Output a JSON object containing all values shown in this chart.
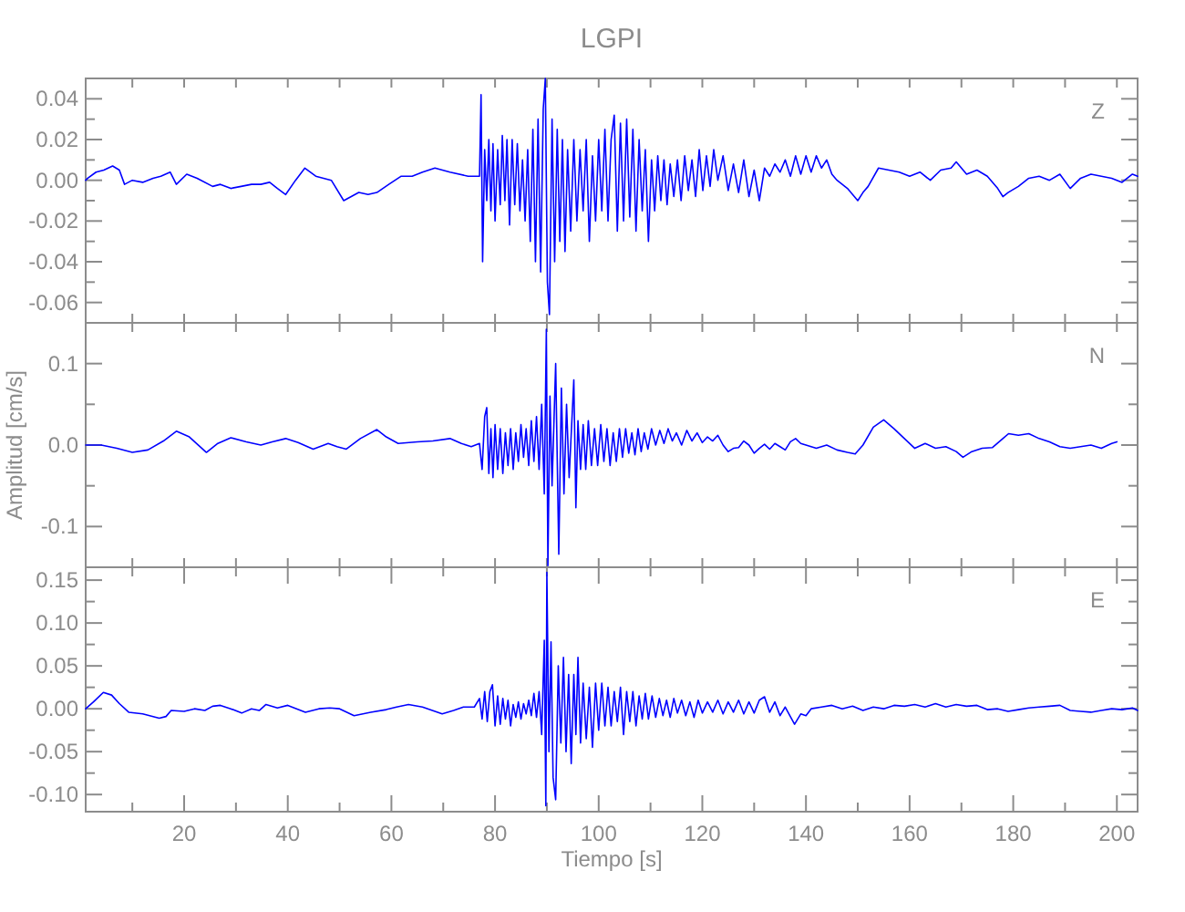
{
  "chart_data": [
    {
      "type": "line",
      "title": "LGPI",
      "annotations": [
        "Z"
      ],
      "tick_labels": "y",
      "xlim": [
        1,
        204
      ],
      "xticks": [
        {
          "value": 10,
          "label": null
        },
        {
          "value": 20,
          "label": null
        },
        {
          "value": 30,
          "label": null
        },
        {
          "value": 40,
          "label": null
        },
        {
          "value": 50,
          "label": null
        },
        {
          "value": 60,
          "label": null
        },
        {
          "value": 70,
          "label": null
        },
        {
          "value": 80,
          "label": null
        },
        {
          "value": 90,
          "label": null
        },
        {
          "value": 100,
          "label": null
        },
        {
          "value": 110,
          "label": null
        },
        {
          "value": 120,
          "label": null
        },
        {
          "value": 130,
          "label": null
        },
        {
          "value": 140,
          "label": null
        },
        {
          "value": 150,
          "label": null
        },
        {
          "value": 160,
          "label": null
        },
        {
          "value": 170,
          "label": null
        },
        {
          "value": 180,
          "label": null
        },
        {
          "value": 190,
          "label": null
        },
        {
          "value": 200,
          "label": null
        }
      ],
      "ylim": [
        -0.07,
        0.05
      ],
      "yticks": [
        {
          "value": -0.07,
          "label": null
        },
        {
          "value": -0.06,
          "label": "-0.06"
        },
        {
          "value": -0.05,
          "label": null
        },
        {
          "value": -0.04,
          "label": "-0.04"
        },
        {
          "value": -0.03,
          "label": null
        },
        {
          "value": -0.02,
          "label": "-0.02"
        },
        {
          "value": -0.01,
          "label": null
        },
        {
          "value": 0,
          "label": "0.00"
        },
        {
          "value": 0.01,
          "label": null
        },
        {
          "value": 0.02,
          "label": "0.02"
        },
        {
          "value": 0.03,
          "label": null
        },
        {
          "value": 0.04,
          "label": "0.04"
        },
        {
          "value": 0.05,
          "label": null
        }
      ],
      "x": [
        1,
        1.4,
        3,
        4.5,
        6.2,
        7.5,
        8.5,
        10,
        12,
        14,
        15.5,
        17.3,
        18.5,
        20.5,
        22.5,
        25.5,
        27,
        29,
        31,
        33,
        34.8,
        36.5,
        38,
        39.6,
        41.5,
        43.3,
        45.4,
        48.4,
        50.8,
        53.7,
        55.5,
        57.2,
        59.5,
        61.9,
        64,
        66,
        68.4,
        71.3,
        74.8,
        77,
        77.3,
        77.6,
        78,
        78.4,
        78.8,
        79.2,
        79.6,
        80,
        80.5,
        81,
        81.4,
        81.9,
        82.3,
        82.8,
        83.3,
        83.8,
        84.3,
        84.8,
        85.3,
        85.8,
        86.3,
        86.8,
        87.3,
        87.8,
        88.3,
        88.8,
        89.3,
        89.7,
        90.1,
        90.5,
        91,
        91.5,
        92,
        92.5,
        93,
        93.5,
        94,
        94.6,
        95.2,
        95.8,
        96.4,
        97,
        97.6,
        98.2,
        98.8,
        99.4,
        100,
        100.6,
        101.2,
        101.8,
        102.4,
        103,
        103.6,
        104.2,
        104.8,
        105.4,
        106,
        106.6,
        107.2,
        107.8,
        108.4,
        109,
        109.6,
        110.2,
        110.8,
        111.4,
        112,
        112.6,
        113.2,
        113.8,
        114.5,
        115.2,
        115.9,
        116.6,
        117.3,
        118,
        118.7,
        119.4,
        120.1,
        120.8,
        121.5,
        122.2,
        123,
        124,
        125,
        126,
        127,
        128,
        129,
        130,
        131,
        132,
        133,
        134,
        135,
        136,
        137,
        138,
        139,
        140,
        141,
        142,
        143,
        144,
        145,
        146,
        148,
        149,
        150,
        151,
        152,
        154,
        156,
        158,
        160,
        162,
        164,
        166,
        168,
        169,
        171,
        173,
        175,
        177,
        178,
        179,
        181,
        183,
        185,
        187,
        189,
        191,
        193,
        195,
        197,
        199,
        201,
        203,
        204
      ],
      "series": [
        {
          "color": "#0000ff",
          "values": [
            0.0,
            0.001,
            0.004,
            0.005,
            0.007,
            0.005,
            -0.002,
            0.0,
            -0.001,
            0.001,
            0.002,
            0.004,
            -0.002,
            0.003,
            0.001,
            -0.003,
            -0.002,
            -0.004,
            -0.003,
            -0.002,
            -0.002,
            -0.001,
            -0.004,
            -0.007,
            0.0,
            0.006,
            0.002,
            0.0,
            -0.01,
            -0.006,
            -0.007,
            -0.006,
            -0.002,
            0.002,
            0.002,
            0.004,
            0.006,
            0.004,
            0.002,
            0.002,
            0.042,
            -0.04,
            0.015,
            -0.01,
            0.02,
            -0.015,
            0.018,
            -0.02,
            0.015,
            -0.012,
            0.022,
            -0.01,
            0.02,
            -0.022,
            0.02,
            -0.012,
            0.018,
            -0.015,
            0.01,
            -0.02,
            0.015,
            -0.03,
            0.025,
            -0.04,
            0.03,
            -0.045,
            0.035,
            0.05,
            -0.05,
            -0.066,
            0.03,
            -0.04,
            0.025,
            -0.03,
            0.02,
            -0.035,
            0.015,
            -0.025,
            0.02,
            -0.02,
            0.015,
            -0.015,
            0.02,
            -0.03,
            0.012,
            -0.02,
            0.02,
            -0.015,
            0.025,
            -0.02,
            0.02,
            0.032,
            -0.025,
            0.028,
            -0.02,
            0.03,
            -0.018,
            0.025,
            -0.025,
            0.02,
            -0.015,
            0.015,
            -0.03,
            0.01,
            -0.015,
            0.012,
            -0.01,
            0.01,
            -0.012,
            0.008,
            -0.008,
            0.01,
            -0.01,
            0.012,
            -0.005,
            0.01,
            -0.008,
            0.015,
            -0.005,
            0.012,
            -0.003,
            0.015,
            0.0,
            0.012,
            -0.005,
            0.008,
            -0.006,
            0.01,
            -0.008,
            0.005,
            -0.01,
            0.006,
            0.002,
            0.008,
            0.004,
            0.01,
            0.002,
            0.012,
            0.003,
            0.012,
            0.004,
            0.012,
            0.006,
            0.01,
            0.003,
            0.0,
            -0.004,
            -0.007,
            -0.01,
            -0.006,
            -0.003,
            0.006,
            0.005,
            0.004,
            0.002,
            0.004,
            0.0,
            0.005,
            0.006,
            0.009,
            0.003,
            0.005,
            0.002,
            -0.004,
            -0.008,
            -0.006,
            -0.003,
            0.001,
            0.002,
            0.0,
            0.003,
            -0.004,
            0.001,
            0.003,
            0.002,
            0.001,
            -0.001,
            0.003,
            0.002
          ]
        }
      ]
    },
    {
      "type": "line",
      "ylabel": "Amplitud  [cm/s]",
      "annotations": [
        "N"
      ],
      "tick_labels": "y",
      "xlim": [
        1,
        204
      ],
      "xticks": [
        {
          "value": 10,
          "label": null
        },
        {
          "value": 20,
          "label": null
        },
        {
          "value": 30,
          "label": null
        },
        {
          "value": 40,
          "label": null
        },
        {
          "value": 50,
          "label": null
        },
        {
          "value": 60,
          "label": null
        },
        {
          "value": 70,
          "label": null
        },
        {
          "value": 80,
          "label": null
        },
        {
          "value": 90,
          "label": null
        },
        {
          "value": 100,
          "label": null
        },
        {
          "value": 110,
          "label": null
        },
        {
          "value": 120,
          "label": null
        },
        {
          "value": 130,
          "label": null
        },
        {
          "value": 140,
          "label": null
        },
        {
          "value": 150,
          "label": null
        },
        {
          "value": 160,
          "label": null
        },
        {
          "value": 170,
          "label": null
        },
        {
          "value": 180,
          "label": null
        },
        {
          "value": 190,
          "label": null
        },
        {
          "value": 200,
          "label": null
        }
      ],
      "ylim": [
        -0.15,
        0.15
      ],
      "yticks": [
        {
          "value": -0.15,
          "label": null
        },
        {
          "value": -0.1,
          "label": "-0.1"
        },
        {
          "value": -0.05,
          "label": null
        },
        {
          "value": 0,
          "label": "0.0"
        },
        {
          "value": 0.05,
          "label": null
        },
        {
          "value": 0.1,
          "label": "0.1"
        },
        {
          "value": 0.15,
          "label": null
        }
      ],
      "x": [
        1,
        4,
        7,
        10,
        13,
        16,
        18.5,
        21,
        24.3,
        26.5,
        29,
        32,
        34.8,
        37,
        39.6,
        42,
        44.9,
        47.8,
        49.5,
        51.3,
        54,
        57.2,
        59,
        61.3,
        65,
        68,
        71.3,
        73.5,
        75.4,
        77,
        77.5,
        78,
        78.4,
        78.8,
        79.2,
        79.6,
        80,
        80.5,
        81,
        81.5,
        82,
        82.5,
        83,
        83.5,
        84,
        84.5,
        85,
        85.5,
        86,
        86.5,
        87,
        87.5,
        88,
        88.5,
        89,
        89.5,
        89.9,
        90.2,
        90.6,
        91,
        91.7,
        92.3,
        92.8,
        93.3,
        93.8,
        94.3,
        95.2,
        95.6,
        96,
        96.5,
        97,
        97.5,
        98,
        98.6,
        99.2,
        99.8,
        100.4,
        101,
        101.6,
        102.2,
        102.8,
        103.4,
        104,
        104.6,
        105.2,
        105.8,
        106.4,
        107,
        107.6,
        108.2,
        108.8,
        109.5,
        110.2,
        111,
        111.8,
        112.6,
        113.4,
        114.2,
        115,
        116,
        117,
        118,
        119,
        120,
        121,
        122,
        123,
        124,
        125,
        126,
        127,
        128,
        129,
        130,
        131,
        132,
        133,
        134,
        135,
        136,
        137,
        138,
        139,
        140,
        142,
        144,
        146,
        148,
        149.5,
        151,
        153,
        155,
        157,
        159,
        161,
        163,
        165,
        167,
        169,
        170.3,
        172,
        174,
        176,
        178,
        179.1,
        181,
        183,
        185,
        187,
        189,
        191,
        193,
        195,
        197,
        199,
        200
      ],
      "series": [
        {
          "color": "#0000ff",
          "values": [
            0.0,
            0.0,
            -0.004,
            -0.009,
            -0.006,
            0.005,
            0.017,
            0.01,
            -0.009,
            0.002,
            0.009,
            0.004,
            0.0,
            0.004,
            0.008,
            0.003,
            -0.005,
            0.002,
            -0.002,
            -0.005,
            0.008,
            0.019,
            0.01,
            0.002,
            0.004,
            0.005,
            0.008,
            0.002,
            -0.002,
            0.002,
            -0.03,
            0.035,
            0.046,
            -0.035,
            0.02,
            -0.04,
            0.025,
            -0.03,
            0.02,
            -0.035,
            0.015,
            -0.025,
            0.02,
            -0.03,
            0.015,
            -0.02,
            0.025,
            -0.015,
            0.02,
            -0.025,
            0.03,
            -0.02,
            0.035,
            -0.03,
            0.05,
            -0.06,
            0.142,
            -0.148,
            0.06,
            -0.05,
            0.1,
            -0.134,
            0.07,
            -0.06,
            0.05,
            -0.04,
            0.08,
            -0.077,
            0.03,
            -0.03,
            0.025,
            -0.03,
            0.03,
            -0.025,
            0.02,
            -0.025,
            0.025,
            -0.02,
            0.02,
            -0.025,
            0.015,
            -0.02,
            0.02,
            -0.015,
            0.02,
            -0.01,
            0.015,
            -0.012,
            0.02,
            -0.008,
            0.015,
            -0.005,
            0.02,
            0.0,
            0.018,
            0.002,
            0.02,
            0.005,
            0.015,
            0.0,
            0.018,
            0.005,
            0.015,
            0.003,
            0.01,
            0.005,
            0.012,
            0.0,
            -0.008,
            -0.004,
            -0.003,
            0.005,
            0.0,
            -0.01,
            -0.004,
            0.001,
            -0.005,
            0.002,
            -0.002,
            -0.006,
            0.004,
            0.008,
            0.002,
            0.0,
            -0.004,
            0.0,
            -0.006,
            -0.009,
            -0.011,
            0.0,
            0.022,
            0.031,
            0.02,
            0.008,
            -0.004,
            0.002,
            -0.004,
            -0.002,
            -0.008,
            -0.015,
            -0.008,
            -0.004,
            -0.003,
            0.008,
            0.014,
            0.012,
            0.014,
            0.008,
            0.004,
            -0.002,
            -0.004,
            -0.002,
            0.0,
            -0.004,
            0.002,
            0.004
          ]
        }
      ]
    },
    {
      "type": "line",
      "xlabel": "Tiempo  [s]",
      "annotations": [
        "E"
      ],
      "xlim": [
        1,
        204
      ],
      "xticks": [
        {
          "value": 10,
          "label": null
        },
        {
          "value": 20,
          "label": "20"
        },
        {
          "value": 30,
          "label": null
        },
        {
          "value": 40,
          "label": "40"
        },
        {
          "value": 50,
          "label": null
        },
        {
          "value": 60,
          "label": "60"
        },
        {
          "value": 70,
          "label": null
        },
        {
          "value": 80,
          "label": "80"
        },
        {
          "value": 90,
          "label": null
        },
        {
          "value": 100,
          "label": "100"
        },
        {
          "value": 110,
          "label": null
        },
        {
          "value": 120,
          "label": "120"
        },
        {
          "value": 130,
          "label": null
        },
        {
          "value": 140,
          "label": "140"
        },
        {
          "value": 150,
          "label": null
        },
        {
          "value": 160,
          "label": "160"
        },
        {
          "value": 170,
          "label": null
        },
        {
          "value": 180,
          "label": "180"
        },
        {
          "value": 190,
          "label": null
        },
        {
          "value": 200,
          "label": "200"
        }
      ],
      "ylim": [
        -0.12,
        0.165
      ],
      "yticks": [
        {
          "value": -0.1,
          "label": "-0.10"
        },
        {
          "value": -0.075,
          "label": null
        },
        {
          "value": -0.05,
          "label": "-0.05"
        },
        {
          "value": -0.025,
          "label": null
        },
        {
          "value": 0,
          "label": "0.00"
        },
        {
          "value": 0.025,
          "label": null
        },
        {
          "value": 0.05,
          "label": "0.05"
        },
        {
          "value": 0.075,
          "label": null
        },
        {
          "value": 0.1,
          "label": "0.10"
        },
        {
          "value": 0.125,
          "label": null
        },
        {
          "value": 0.15,
          "label": "0.15"
        }
      ],
      "x": [
        1,
        2.5,
        4.4,
        6,
        7.5,
        9.3,
        12,
        15.2,
        16.5,
        17.5,
        20,
        22,
        24,
        25.5,
        27,
        29,
        31.1,
        33,
        34.5,
        35.8,
        38,
        40,
        43.4,
        46,
        48.1,
        50,
        52.8,
        56,
        59,
        61,
        63.3,
        66,
        69.8,
        72,
        73.9,
        76,
        77,
        77.5,
        78,
        78.5,
        79,
        79.5,
        80,
        80.5,
        81,
        81.5,
        82,
        82.5,
        83,
        83.5,
        84,
        84.5,
        85,
        85.5,
        86,
        86.5,
        87,
        87.5,
        88,
        88.5,
        89,
        89.5,
        89.8,
        90,
        90.4,
        90.8,
        91.2,
        91.7,
        92.2,
        92.7,
        93.2,
        93.7,
        94.2,
        94.7,
        95.2,
        95.6,
        96,
        96.5,
        97,
        97.6,
        98.2,
        98.8,
        99.4,
        100,
        100.6,
        101.2,
        101.8,
        102.4,
        103,
        103.6,
        104.2,
        104.8,
        105.4,
        106,
        106.6,
        107.2,
        107.8,
        108.4,
        109,
        109.6,
        110.3,
        111,
        111.7,
        112.4,
        113.1,
        113.8,
        114.5,
        115.2,
        116,
        116.8,
        117.6,
        118.4,
        119.2,
        120,
        121,
        122,
        123,
        124,
        125,
        126,
        127,
        128,
        129,
        130,
        131,
        132,
        133,
        134,
        135,
        136,
        137.8,
        139,
        140,
        141,
        143,
        145,
        147,
        149,
        151,
        153,
        155,
        157,
        159,
        161,
        163,
        165,
        167,
        169,
        171,
        173,
        175,
        177,
        179,
        181,
        183,
        185,
        187,
        189,
        191,
        193,
        195,
        197,
        199,
        201,
        203,
        204
      ],
      "series": [
        {
          "color": "#0000ff",
          "values": [
            0.0,
            0.008,
            0.019,
            0.016,
            0.006,
            -0.004,
            -0.006,
            -0.011,
            -0.009,
            -0.002,
            -0.003,
            0.0,
            -0.002,
            0.003,
            0.004,
            0.0,
            -0.005,
            0.0,
            -0.002,
            0.005,
            0.001,
            0.004,
            -0.004,
            0.0,
            0.001,
            0.0,
            -0.008,
            -0.004,
            -0.001,
            0.002,
            0.005,
            0.002,
            -0.006,
            -0.002,
            0.002,
            0.002,
            0.012,
            -0.012,
            0.02,
            -0.015,
            0.02,
            0.028,
            -0.02,
            0.015,
            -0.018,
            0.012,
            -0.012,
            0.01,
            -0.02,
            0.005,
            -0.01,
            0.008,
            -0.012,
            0.006,
            -0.006,
            0.01,
            -0.008,
            0.018,
            -0.01,
            0.02,
            -0.03,
            0.08,
            -0.113,
            0.159,
            -0.05,
            0.078,
            -0.08,
            -0.106,
            0.05,
            -0.04,
            0.06,
            -0.05,
            0.04,
            -0.064,
            0.04,
            -0.03,
            0.06,
            -0.04,
            0.03,
            -0.035,
            0.025,
            -0.045,
            0.03,
            -0.025,
            0.03,
            -0.02,
            0.025,
            -0.02,
            0.02,
            -0.015,
            0.025,
            -0.03,
            0.02,
            -0.015,
            0.02,
            -0.02,
            0.015,
            -0.012,
            0.018,
            -0.012,
            0.015,
            -0.01,
            0.012,
            -0.008,
            0.01,
            -0.01,
            0.012,
            -0.005,
            0.01,
            -0.008,
            0.008,
            -0.01,
            0.01,
            -0.005,
            0.008,
            -0.004,
            0.01,
            -0.006,
            0.008,
            -0.004,
            0.01,
            -0.006,
            0.008,
            -0.005,
            0.01,
            0.014,
            -0.004,
            0.008,
            -0.008,
            0.002,
            -0.018,
            -0.006,
            -0.008,
            0.0,
            0.002,
            0.004,
            0.0,
            0.003,
            -0.002,
            0.002,
            0.0,
            0.004,
            0.003,
            0.005,
            0.002,
            0.006,
            0.002,
            0.005,
            0.003,
            0.004,
            -0.001,
            0.0,
            -0.003,
            -0.001,
            0.001,
            0.002,
            0.003,
            0.004,
            -0.002,
            -0.003,
            -0.004,
            -0.002,
            0.0,
            -0.001,
            0.001,
            -0.002
          ]
        }
      ]
    }
  ]
}
